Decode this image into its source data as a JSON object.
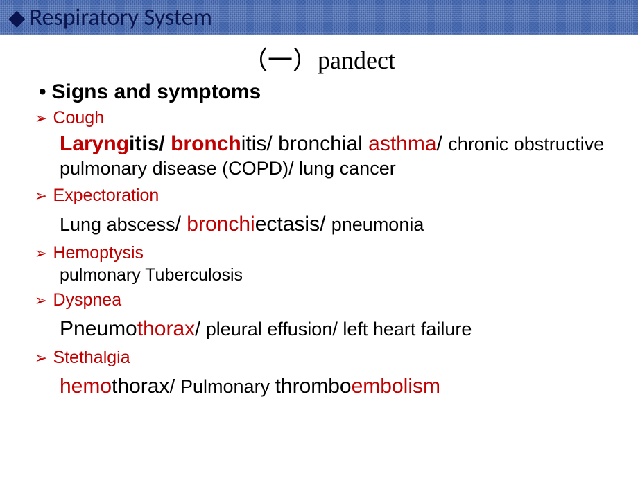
{
  "colors": {
    "header_bg": "#4a6db3",
    "header_text": "#0a1550",
    "accent_red": "#c00000",
    "body_text": "#000000",
    "background": "#ffffff"
  },
  "typography": {
    "header_fontsize": 34,
    "subtitle_fontsize": 36,
    "section_fontsize": 30,
    "item_fontsize": 25,
    "detail_fontsize": 27
  },
  "header": {
    "diamond": "◆",
    "title": "Respiratory System"
  },
  "subtitle": "（一）pandect",
  "section": {
    "bullet": "•",
    "heading": "Signs and symptoms"
  },
  "arrow_glyph": "➢",
  "items": {
    "cough": {
      "label": "Cough",
      "d": {
        "p1a": "Laryng",
        "p1b": "itis",
        "sep1": "/ ",
        "p2a": "bronch",
        "p2b": "itis",
        "sep2": "/ ",
        "p3a": "bronchial ",
        "p3b": "asthma",
        "sep3": "/ ",
        "p4": "chronic obstructive pulmonary disease (COPD)/ lung cancer"
      }
    },
    "expectoration": {
      "label": "Expectoration",
      "d": {
        "p1": "Lung abscess",
        "sep1": "/ ",
        "p2a": "bronchi",
        "p2b": "ectasis",
        "sep2": "/ ",
        "p3": "pneumonia"
      }
    },
    "hemoptysis": {
      "label": "Hemoptysis",
      "d": {
        "p1": "pulmonary Tuberculosis"
      }
    },
    "dyspnea": {
      "label": "Dyspnea",
      "d": {
        "p1a": "Pneumo",
        "p1b": "thorax",
        "sep1": "/ ",
        "p2": "pleural effusion/ left heart  failure"
      }
    },
    "stethalgia": {
      "label": "Stethalgia",
      "d": {
        "p1a": "hemo",
        "p1b": "thorax",
        "sep1": "/ ",
        "p2a": "Pulmonary ",
        "p2b": "thrombo",
        "p2c": "embolism"
      }
    }
  }
}
